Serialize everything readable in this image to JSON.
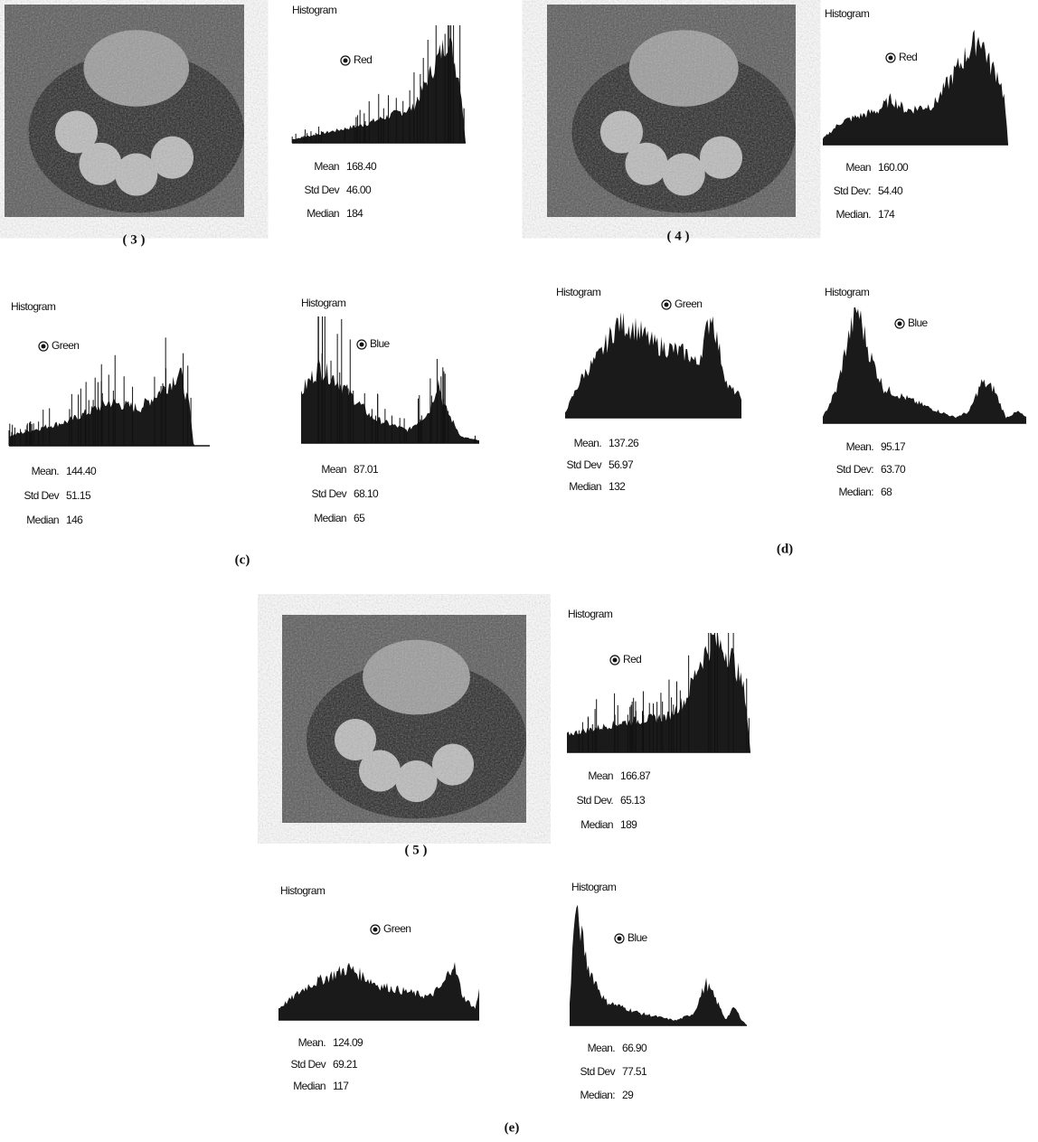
{
  "images": [
    {
      "caption": "( 3 )"
    },
    {
      "caption": "( 4 )"
    },
    {
      "caption": "( 5 )"
    }
  ],
  "histograms": [
    {
      "title": "Histogram",
      "channel": "Red",
      "stats": [
        {
          "label": "Mean",
          "value": "168.40"
        },
        {
          "label": "Std Dev",
          "value": "46.00"
        },
        {
          "label": "Median",
          "value": "184"
        }
      ]
    },
    {
      "title": "Histogram",
      "channel": "Green",
      "stats": [
        {
          "label": "Mean.",
          "value": "144.40"
        },
        {
          "label": "Std Dev",
          "value": "51.15"
        },
        {
          "label": "Median",
          "value": "146"
        }
      ]
    },
    {
      "title": "Histogram",
      "channel": "Blue",
      "stats": [
        {
          "label": "Mean",
          "value": "87.01"
        },
        {
          "label": "Std Dev",
          "value": "68.10"
        },
        {
          "label": "Median",
          "value": "65"
        }
      ]
    },
    {
      "title": "Histogram",
      "channel": "Red",
      "stats": [
        {
          "label": "Mean",
          "value": "160.00"
        },
        {
          "label": "Std Dev:",
          "value": "54.40"
        },
        {
          "label": "Median.",
          "value": "174"
        }
      ]
    },
    {
      "title": "Histogram",
      "channel": "Green",
      "stats": [
        {
          "label": "Mean.",
          "value": "137.26"
        },
        {
          "label": "Std Dev",
          "value": "56.97"
        },
        {
          "label": "Median",
          "value": "132"
        }
      ]
    },
    {
      "title": "Histogram",
      "channel": "Blue",
      "stats": [
        {
          "label": "Mean.",
          "value": "95.17"
        },
        {
          "label": "Std Dev:",
          "value": "63.70"
        },
        {
          "label": "Median:",
          "value": "68"
        }
      ]
    },
    {
      "title": "Histogram",
      "channel": "Red",
      "stats": [
        {
          "label": "Mean",
          "value": "166.87"
        },
        {
          "label": "Std Dev.",
          "value": "65.13"
        },
        {
          "label": "Median",
          "value": "189"
        }
      ]
    },
    {
      "title": "Histogram",
      "channel": "Green",
      "stats": [
        {
          "label": "Mean.",
          "value": "124.09"
        },
        {
          "label": "Std Dev",
          "value": "69.21"
        },
        {
          "label": "Median",
          "value": "117"
        }
      ]
    },
    {
      "title": "Histogram",
      "channel": "Blue",
      "stats": [
        {
          "label": "Mean.",
          "value": "66.90"
        },
        {
          "label": "Std Dev",
          "value": "77.51"
        },
        {
          "label": "Median:",
          "value": "29"
        }
      ]
    }
  ],
  "captions": [
    "(c)",
    "(d)",
    "(e)"
  ]
}
